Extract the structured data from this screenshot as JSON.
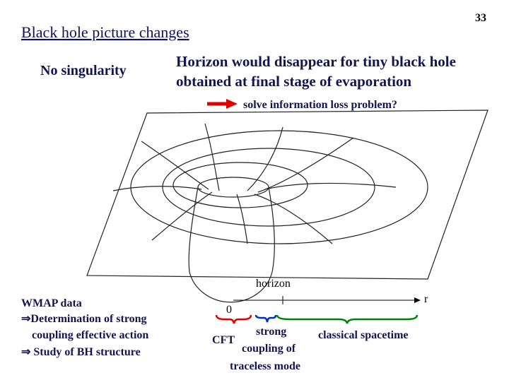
{
  "slide": {
    "page_number": "33",
    "title": "Black hole picture changes",
    "left_note": "No singularity",
    "statement": [
      "Horizon would disappear for tiny black hole",
      "obtained at final stage of evaporation"
    ],
    "arrow_text": "solve information loss problem?",
    "diagram": {
      "horizon_label": "horizon",
      "origin_label": "0",
      "axis_label": "r",
      "cft_label": "CFT",
      "strong_coupling": [
        "strong",
        "coupling of",
        "traceless mode"
      ],
      "classical_label": "classical spacetime"
    },
    "notes": [
      "WMAP data",
      "⇒Determination of strong",
      "coupling effective action",
      "⇒ Study of BH structure"
    ]
  }
}
